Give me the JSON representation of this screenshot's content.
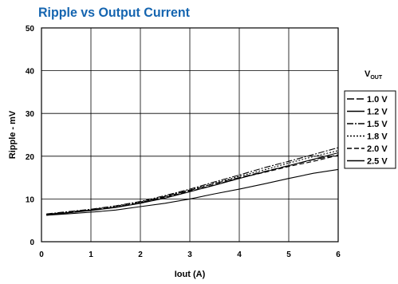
{
  "chart_data": {
    "type": "line",
    "title": "Ripple vs Output Current",
    "xlabel": "Iout (A)",
    "ylabel": "Ripple - mV",
    "xlim": [
      0,
      6
    ],
    "ylim": [
      0,
      50
    ],
    "xticks": [
      0,
      1,
      2,
      3,
      4,
      5,
      6
    ],
    "yticks": [
      0,
      10,
      20,
      30,
      40,
      50
    ],
    "grid": true,
    "legend": {
      "title_main": "V",
      "title_sub": "OUT",
      "placement": "right"
    },
    "x": [
      0.1,
      0.5,
      1.0,
      1.5,
      2.0,
      2.5,
      3.0,
      3.5,
      4.0,
      4.5,
      5.0,
      5.5,
      6.0
    ],
    "series": [
      {
        "name": "1.0 V",
        "dash": "long-dash",
        "values": [
          6.3,
          6.8,
          7.4,
          8.1,
          9.1,
          10.6,
          12.0,
          13.6,
          15.0,
          16.4,
          17.8,
          19.2,
          20.3
        ]
      },
      {
        "name": "1.2 V",
        "dash": "solid",
        "values": [
          6.2,
          6.7,
          7.3,
          8.0,
          9.0,
          10.2,
          11.7,
          13.2,
          14.8,
          16.3,
          17.8,
          19.3,
          20.8
        ]
      },
      {
        "name": "1.5 V",
        "dash": "dash-dot",
        "values": [
          6.5,
          7.0,
          7.6,
          8.4,
          9.4,
          10.8,
          12.3,
          14.0,
          15.6,
          17.3,
          18.8,
          20.4,
          22.0
        ]
      },
      {
        "name": "1.8 V",
        "dash": "dotted",
        "values": [
          6.4,
          6.9,
          7.5,
          8.3,
          9.3,
          10.6,
          12.1,
          13.7,
          15.3,
          16.8,
          18.4,
          19.9,
          21.3
        ]
      },
      {
        "name": "2.0 V",
        "dash": "dashed",
        "values": [
          6.3,
          6.8,
          7.4,
          8.1,
          9.1,
          10.4,
          11.8,
          13.3,
          14.9,
          16.2,
          17.6,
          18.8,
          20.2
        ]
      },
      {
        "name": "2.5 V",
        "dash": "solid",
        "values": [
          6.2,
          6.5,
          6.9,
          7.4,
          8.2,
          9.0,
          10.0,
          11.2,
          12.3,
          13.5,
          14.8,
          16.0,
          16.9
        ]
      }
    ]
  }
}
